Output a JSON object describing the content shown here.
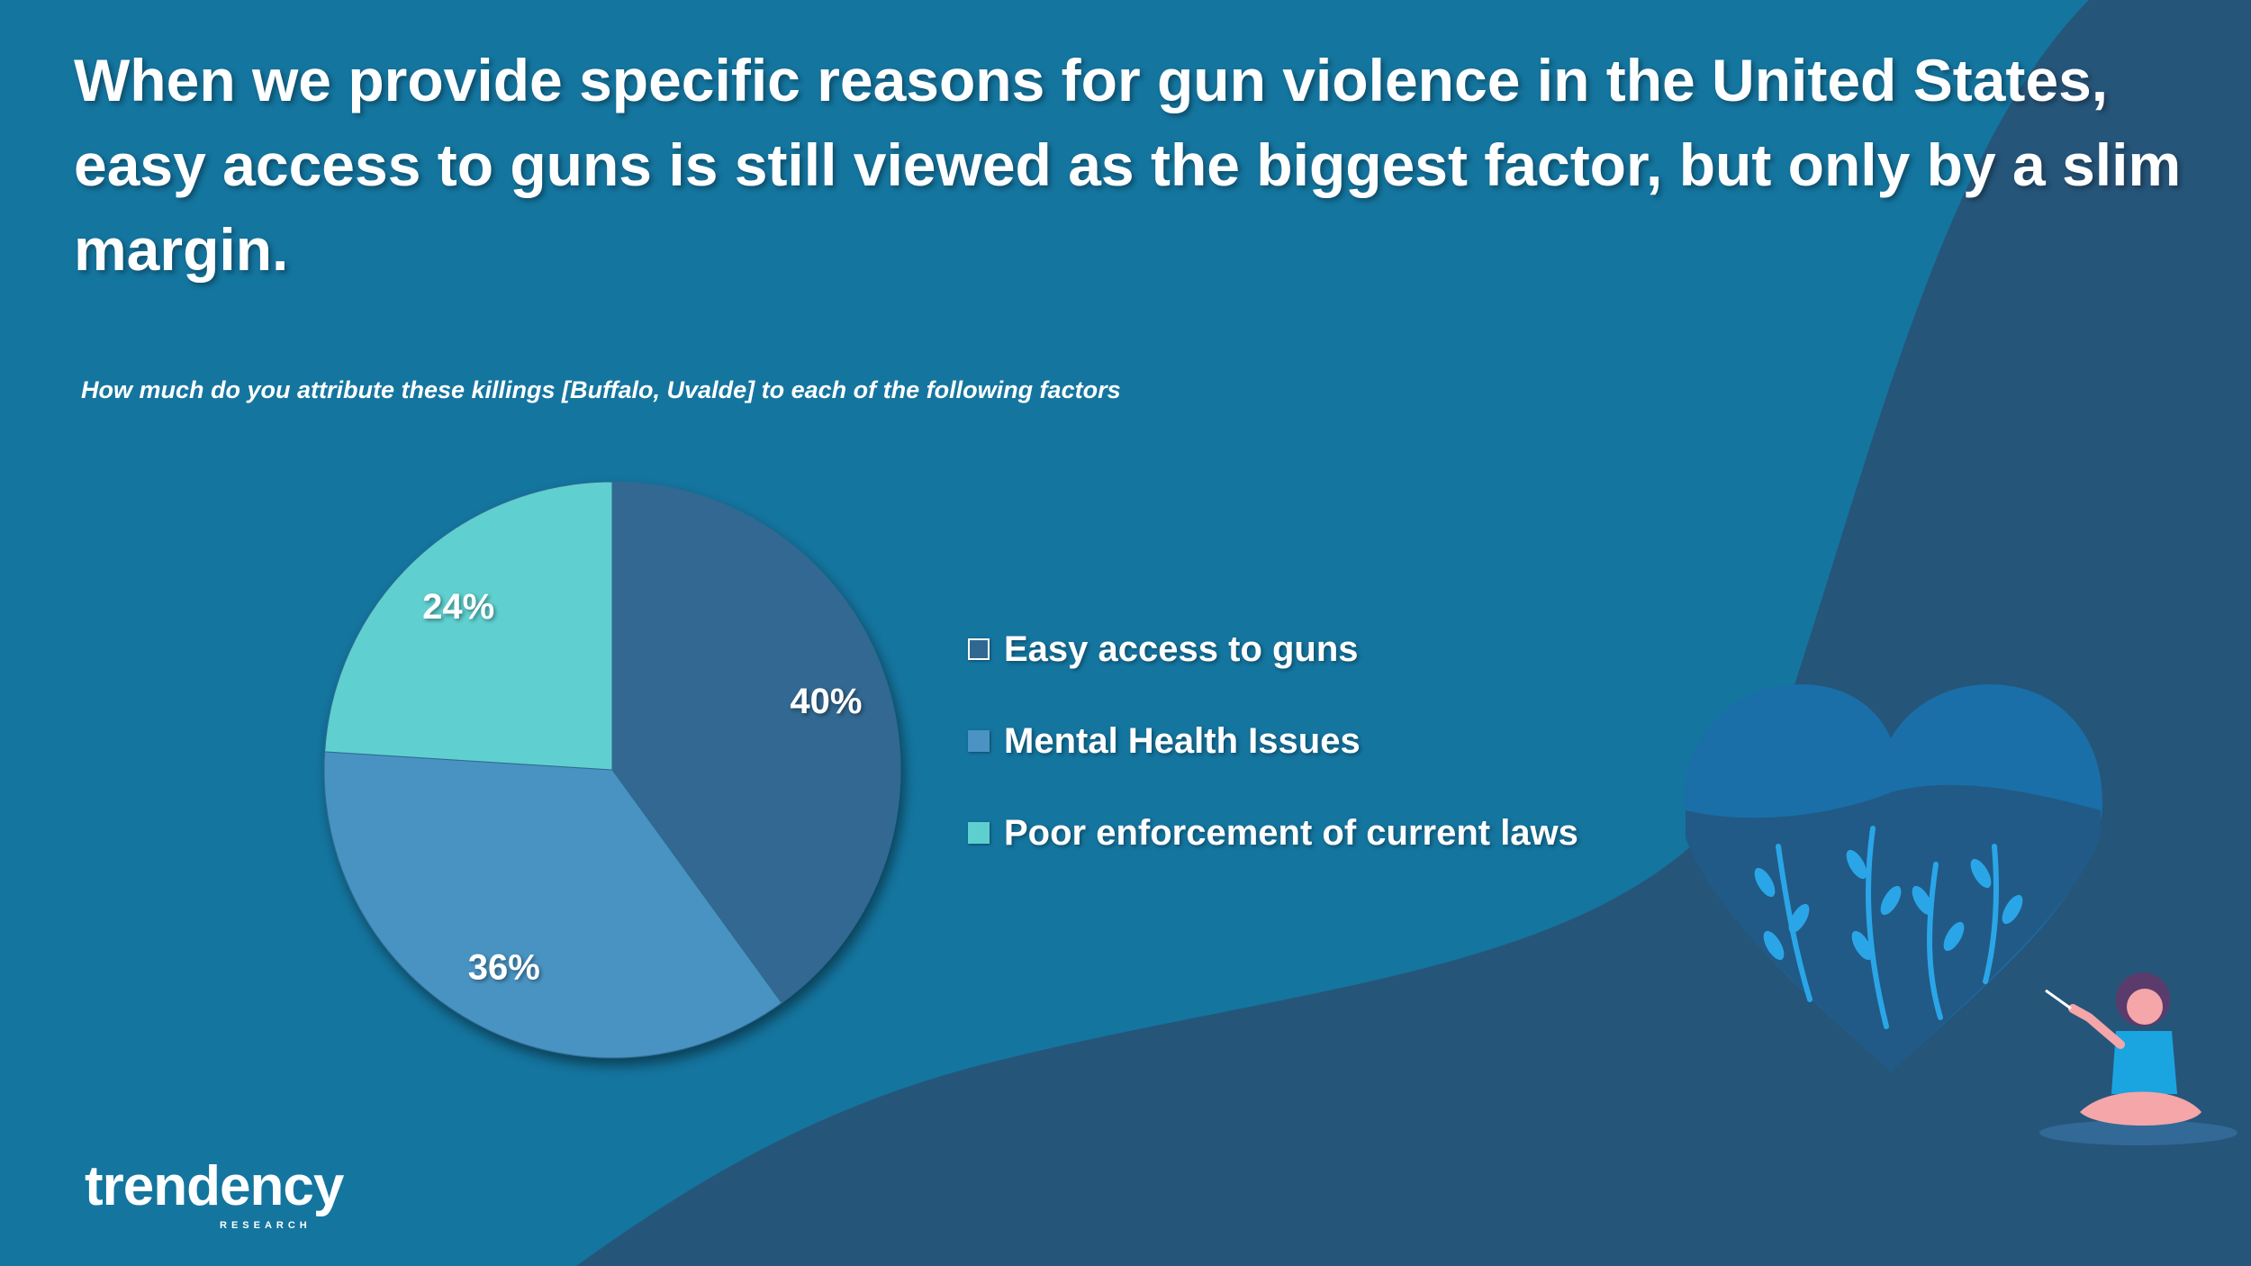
{
  "title": "When we provide specific reasons for gun violence in the United States, easy access to guns is still viewed as the biggest factor, but only by a slim margin.",
  "subtitle": "How much do you attribute these killings [Buffalo, Uvalde] to each of the following factors",
  "chart_data": {
    "type": "pie",
    "title": "",
    "legend_position": "right",
    "slices": [
      {
        "label": "Easy access to guns",
        "value": 40,
        "display": "40%",
        "color": "#316891"
      },
      {
        "label": "Mental Health Issues",
        "value": 36,
        "display": "36%",
        "color": "#4a93c2"
      },
      {
        "label": "Poor enforcement of current laws",
        "value": 24,
        "display": "24%",
        "color": "#5ecfcf"
      }
    ]
  },
  "logo": {
    "name": "trendency",
    "tagline": "RESEARCH"
  },
  "colors": {
    "background": "#14759f",
    "dark_wave": "#26557a",
    "text": "#ffffff"
  },
  "illustration": {
    "icon": "person-heart-illustration"
  }
}
